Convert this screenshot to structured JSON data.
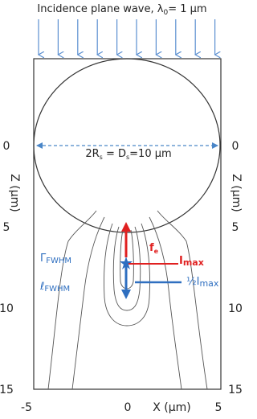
{
  "header": {
    "text": "Incidence plane wave, λ",
    "sub": "0",
    "rest": "= 1 µm"
  },
  "diameter": {
    "a": "2R",
    "a_sub": "s",
    "b": " = D",
    "b_sub": "s",
    "c": "=10 µm"
  },
  "z_ticks": [
    "0",
    "5",
    "10",
    "15"
  ],
  "x_ticks": [
    "-5",
    "0",
    "5"
  ],
  "z_label": "Z (µm)",
  "x_label": "X (µm)",
  "labels": {
    "gamma": "Γ",
    "gamma_sub": "FWHM",
    "ell": "ℓ",
    "ell_sub": "FWHM",
    "f": "f",
    "f_sub": "e",
    "imax": "I",
    "imax_sub": "max",
    "half": "½I",
    "half_sub": "max"
  }
}
